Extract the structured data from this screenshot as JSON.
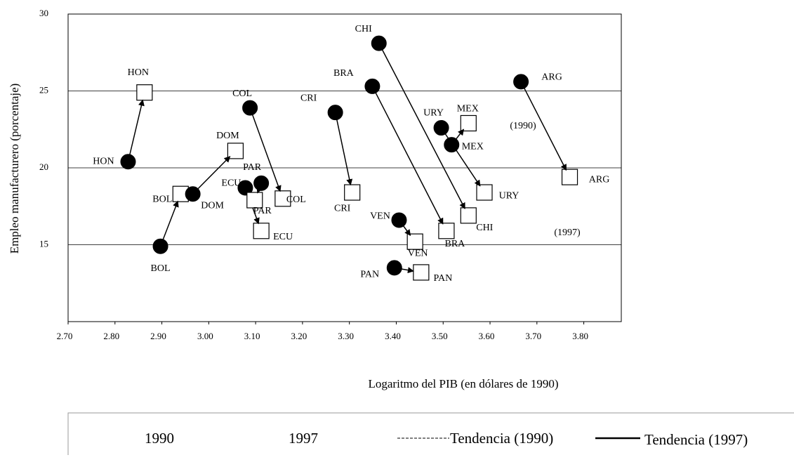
{
  "chart_data": {
    "type": "scatter",
    "xlabel": "Logaritmo del PIB (en dólares de 1990)",
    "ylabel": "Empleo manufacturero (porcentaje)",
    "categories": [
      "HON",
      "BOL",
      "DOM",
      "ECU",
      "PAR",
      "COL",
      "CRI",
      "BRA",
      "CHI",
      "VEN",
      "PAN",
      "URY",
      "MEX",
      "ARG"
    ],
    "series": [
      {
        "name": "1990",
        "color": "#000000",
        "x": [
          2.828,
          2.897,
          2.966,
          3.078,
          3.112,
          3.088,
          3.27,
          3.349,
          3.363,
          3.406,
          3.396,
          3.496,
          3.518,
          3.666
        ],
        "values": [
          20.4,
          14.9,
          18.3,
          18.7,
          19.0,
          23.9,
          23.6,
          25.3,
          28.1,
          16.6,
          13.5,
          22.6,
          21.5,
          25.6
        ]
      },
      {
        "name": "1997",
        "color": "#ffffff",
        "x": [
          2.863,
          2.94,
          3.057,
          3.112,
          3.098,
          3.158,
          3.306,
          3.507,
          3.554,
          3.44,
          3.453,
          3.588,
          3.554,
          3.77
        ],
        "values": [
          24.9,
          18.3,
          21.1,
          15.9,
          17.9,
          18.0,
          18.4,
          15.9,
          16.9,
          15.2,
          13.2,
          18.4,
          22.9,
          19.4
        ]
      }
    ],
    "xlim": [
      2.7,
      3.88
    ],
    "ylim": [
      10,
      30
    ],
    "xticks": [
      {
        "value": 2.7,
        "label": "2.70"
      },
      {
        "value": 2.8,
        "label": "2.80"
      },
      {
        "value": 2.9,
        "label": "2.90"
      },
      {
        "value": 3.0,
        "label": "3.00"
      },
      {
        "value": 3.1,
        "label": "3.10"
      },
      {
        "value": 3.2,
        "label": "3.20"
      },
      {
        "value": 3.3,
        "label": "3.30"
      },
      {
        "value": 3.4,
        "label": "3.40"
      },
      {
        "value": 3.5,
        "label": "3.50"
      },
      {
        "value": 3.6,
        "label": "3.60"
      },
      {
        "value": 3.7,
        "label": "3.70"
      },
      {
        "value": 3.8,
        "label": "3.80"
      }
    ],
    "yticks": [
      15,
      20,
      25,
      30
    ],
    "grid": true,
    "annotations": [
      "(1990)",
      "(1997)"
    ],
    "trend_legend": [
      "Tendencia (1990)",
      "Tendencia (1997)"
    ]
  }
}
